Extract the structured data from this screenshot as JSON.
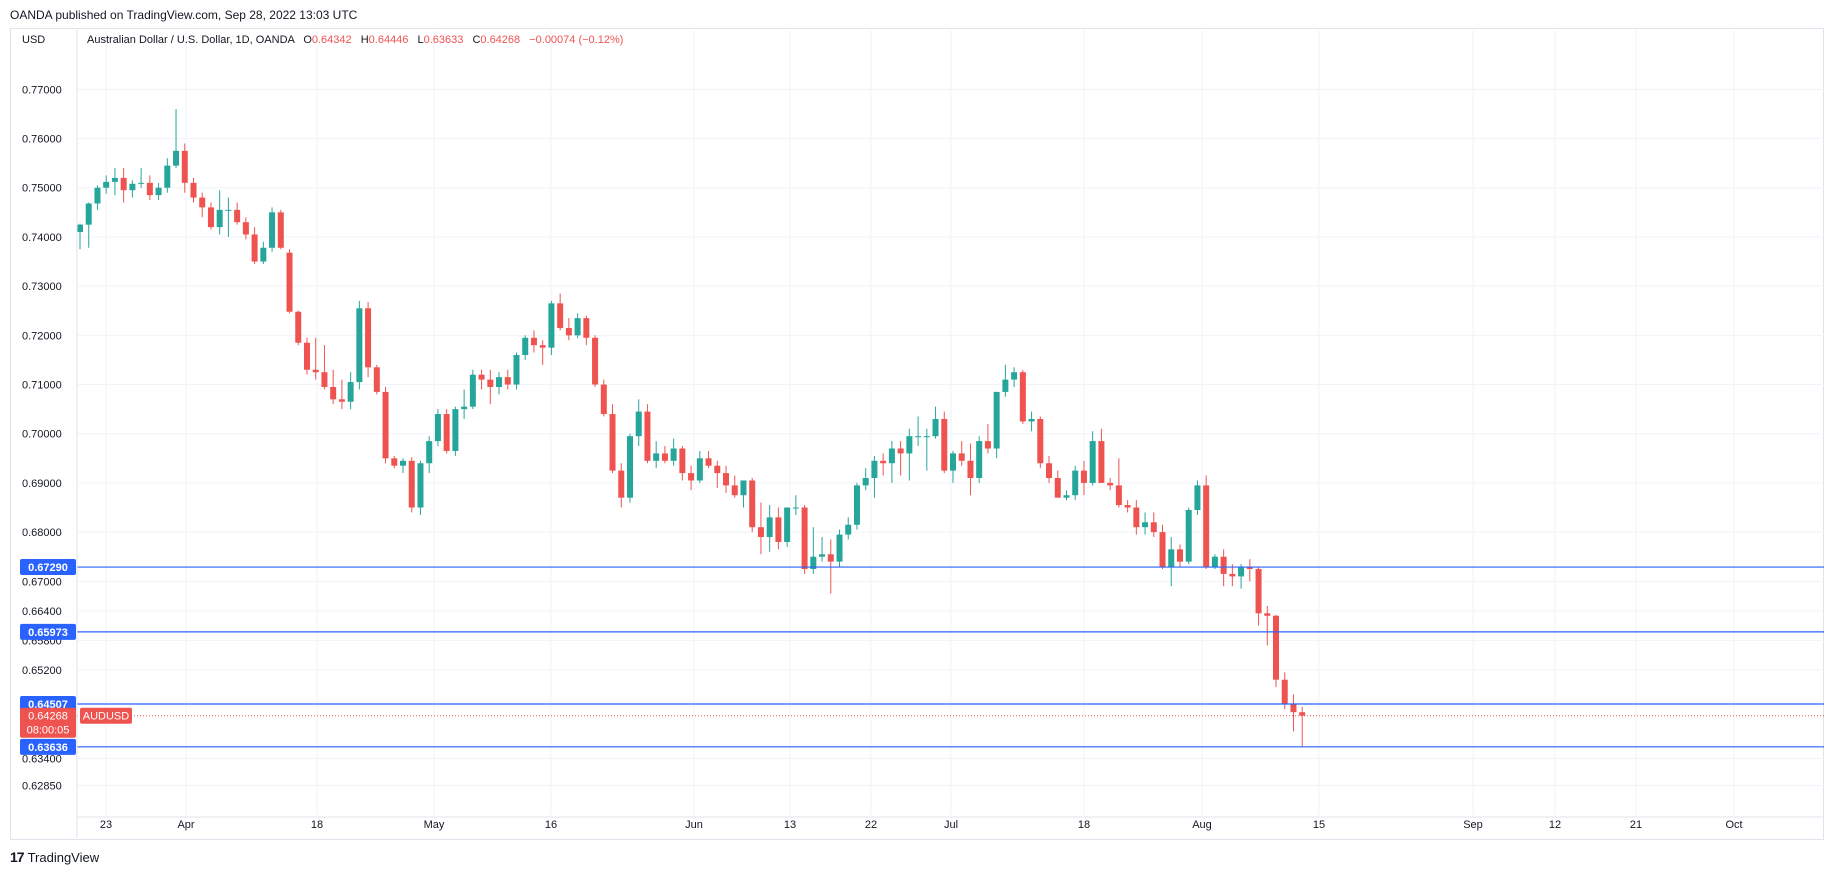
{
  "header": {
    "published": "OANDA published on TradingView.com, Sep 28, 2022 13:03 UTC"
  },
  "legend": {
    "symbol_desc": "Australian Dollar / U.S. Dollar, 1D, OANDA",
    "o_label": "O",
    "o_value": "0.64342",
    "h_label": "H",
    "h_value": "0.64446",
    "l_label": "L",
    "l_value": "0.63633",
    "c_label": "C",
    "c_value": "0.64268",
    "change": "−0.00074 (−0.12%)"
  },
  "currency": "USD",
  "footer": {
    "brand": "TradingView",
    "logo_glyph": "17"
  },
  "colors": {
    "up": "#26a69a",
    "down": "#ef5350",
    "hline": "#2962ff",
    "grid": "#f0f3fa",
    "text": "#131722"
  },
  "chart_data": {
    "type": "candlestick",
    "symbol": "AUDUSD",
    "ylim": [
      0.6225,
      0.778
    ],
    "y_ticks": [
      "0.77000",
      "0.76000",
      "0.75000",
      "0.74000",
      "0.73000",
      "0.72000",
      "0.71000",
      "0.70000",
      "0.69000",
      "0.68000",
      "0.67000",
      "0.66400",
      "0.65800",
      "0.65200",
      "0.63400",
      "0.62850"
    ],
    "x_ticks": [
      "23",
      "Apr",
      "18",
      "May",
      "16",
      "Jun",
      "13",
      "22",
      "Jul",
      "18",
      "Aug",
      "15",
      "Sep",
      "12",
      "21",
      "Oct"
    ],
    "horizontal_lines": [
      {
        "price": 0.6729,
        "label": "0.67290"
      },
      {
        "price": 0.65973,
        "label": "0.65973"
      },
      {
        "price": 0.64507,
        "label": "0.64507"
      },
      {
        "price": 0.63636,
        "label": "0.63636"
      }
    ],
    "last_price": {
      "value": 0.64268,
      "label": "0.64268",
      "symbol_tag": "AUDUSD",
      "countdown": "08:00:05"
    },
    "candles": [
      [
        0.741,
        0.7427,
        0.7375,
        0.7425
      ],
      [
        0.7425,
        0.747,
        0.7378,
        0.7468
      ],
      [
        0.7468,
        0.7505,
        0.7455,
        0.75
      ],
      [
        0.75,
        0.7525,
        0.7488,
        0.7512
      ],
      [
        0.7512,
        0.754,
        0.7485,
        0.752
      ],
      [
        0.752,
        0.754,
        0.747,
        0.7495
      ],
      [
        0.7495,
        0.7515,
        0.748,
        0.7508
      ],
      [
        0.7508,
        0.754,
        0.75,
        0.751
      ],
      [
        0.751,
        0.7525,
        0.7475,
        0.7485
      ],
      [
        0.7485,
        0.751,
        0.7475,
        0.75
      ],
      [
        0.75,
        0.756,
        0.749,
        0.7545
      ],
      [
        0.7545,
        0.766,
        0.754,
        0.7575
      ],
      [
        0.7575,
        0.759,
        0.749,
        0.751
      ],
      [
        0.751,
        0.752,
        0.747,
        0.748
      ],
      [
        0.748,
        0.749,
        0.744,
        0.746
      ],
      [
        0.746,
        0.747,
        0.7415,
        0.742
      ],
      [
        0.742,
        0.7495,
        0.7405,
        0.7455
      ],
      [
        0.7455,
        0.748,
        0.74,
        0.7455
      ],
      [
        0.7455,
        0.747,
        0.7425,
        0.743
      ],
      [
        0.743,
        0.744,
        0.7395,
        0.7405
      ],
      [
        0.7405,
        0.742,
        0.7345,
        0.735
      ],
      [
        0.735,
        0.739,
        0.7345,
        0.7378
      ],
      [
        0.7378,
        0.746,
        0.737,
        0.745
      ],
      [
        0.745,
        0.7455,
        0.7375,
        0.7378
      ],
      [
        0.7368,
        0.7375,
        0.7245,
        0.7248
      ],
      [
        0.7248,
        0.725,
        0.718,
        0.7185
      ],
      [
        0.7185,
        0.7195,
        0.712,
        0.713
      ],
      [
        0.713,
        0.7195,
        0.711,
        0.7125
      ],
      [
        0.7125,
        0.718,
        0.709,
        0.7095
      ],
      [
        0.7095,
        0.713,
        0.706,
        0.707
      ],
      [
        0.707,
        0.711,
        0.705,
        0.7065
      ],
      [
        0.7065,
        0.7125,
        0.705,
        0.7105
      ],
      [
        0.7105,
        0.727,
        0.709,
        0.7255
      ],
      [
        0.7255,
        0.7268,
        0.7115,
        0.7135
      ],
      [
        0.7135,
        0.714,
        0.708,
        0.7085
      ],
      [
        0.7085,
        0.7095,
        0.694,
        0.695
      ],
      [
        0.695,
        0.6955,
        0.693,
        0.6935
      ],
      [
        0.6935,
        0.695,
        0.692,
        0.6945
      ],
      [
        0.6945,
        0.6952,
        0.684,
        0.685
      ],
      [
        0.685,
        0.6945,
        0.6835,
        0.694
      ],
      [
        0.694,
        0.6995,
        0.692,
        0.6985
      ],
      [
        0.6985,
        0.705,
        0.6975,
        0.704
      ],
      [
        0.704,
        0.705,
        0.696,
        0.6965
      ],
      [
        0.6965,
        0.7055,
        0.6955,
        0.705
      ],
      [
        0.705,
        0.709,
        0.703,
        0.7055
      ],
      [
        0.7055,
        0.713,
        0.705,
        0.712
      ],
      [
        0.712,
        0.713,
        0.709,
        0.711
      ],
      [
        0.711,
        0.713,
        0.706,
        0.7095
      ],
      [
        0.7095,
        0.7125,
        0.708,
        0.7115
      ],
      [
        0.7115,
        0.713,
        0.709,
        0.71
      ],
      [
        0.71,
        0.7165,
        0.709,
        0.716
      ],
      [
        0.716,
        0.72,
        0.715,
        0.7195
      ],
      [
        0.7195,
        0.721,
        0.7165,
        0.718
      ],
      [
        0.718,
        0.719,
        0.714,
        0.7175
      ],
      [
        0.7175,
        0.727,
        0.716,
        0.7265
      ],
      [
        0.7265,
        0.7285,
        0.721,
        0.7215
      ],
      [
        0.7215,
        0.7235,
        0.719,
        0.72
      ],
      [
        0.72,
        0.7245,
        0.7195,
        0.7235
      ],
      [
        0.7235,
        0.724,
        0.718,
        0.7195
      ],
      [
        0.7195,
        0.72,
        0.7095,
        0.71
      ],
      [
        0.71,
        0.711,
        0.7035,
        0.704
      ],
      [
        0.704,
        0.706,
        0.692,
        0.6925
      ],
      [
        0.6925,
        0.694,
        0.685,
        0.687
      ],
      [
        0.687,
        0.7,
        0.686,
        0.6995
      ],
      [
        0.6995,
        0.707,
        0.6975,
        0.7045
      ],
      [
        0.7045,
        0.706,
        0.694,
        0.6945
      ],
      [
        0.6945,
        0.6985,
        0.693,
        0.696
      ],
      [
        0.696,
        0.6975,
        0.694,
        0.6945
      ],
      [
        0.6945,
        0.699,
        0.6935,
        0.697
      ],
      [
        0.697,
        0.6975,
        0.6905,
        0.692
      ],
      [
        0.692,
        0.6935,
        0.6885,
        0.6905
      ],
      [
        0.6905,
        0.6965,
        0.69,
        0.695
      ],
      [
        0.695,
        0.6965,
        0.693,
        0.6935
      ],
      [
        0.6935,
        0.6945,
        0.689,
        0.692
      ],
      [
        0.692,
        0.6935,
        0.688,
        0.6895
      ],
      [
        0.6895,
        0.6915,
        0.687,
        0.6875
      ],
      [
        0.6875,
        0.6905,
        0.685,
        0.6905
      ],
      [
        0.6905,
        0.691,
        0.68,
        0.681
      ],
      [
        0.681,
        0.686,
        0.6755,
        0.679
      ],
      [
        0.679,
        0.6855,
        0.676,
        0.683
      ],
      [
        0.683,
        0.685,
        0.6765,
        0.678
      ],
      [
        0.678,
        0.685,
        0.677,
        0.685
      ],
      [
        0.685,
        0.6875,
        0.6835,
        0.685
      ],
      [
        0.685,
        0.6855,
        0.6715,
        0.6725
      ],
      [
        0.6725,
        0.681,
        0.6715,
        0.675
      ],
      [
        0.675,
        0.679,
        0.674,
        0.6755
      ],
      [
        0.6755,
        0.6785,
        0.6675,
        0.674
      ],
      [
        0.674,
        0.6805,
        0.673,
        0.6795
      ],
      [
        0.6795,
        0.683,
        0.6785,
        0.6815
      ],
      [
        0.6815,
        0.69,
        0.6805,
        0.6895
      ],
      [
        0.6895,
        0.693,
        0.6885,
        0.691
      ],
      [
        0.691,
        0.6955,
        0.687,
        0.6945
      ],
      [
        0.6945,
        0.696,
        0.6915,
        0.694
      ],
      [
        0.694,
        0.6985,
        0.69,
        0.697
      ],
      [
        0.697,
        0.6985,
        0.6915,
        0.696
      ],
      [
        0.696,
        0.701,
        0.6905,
        0.6995
      ],
      [
        0.6995,
        0.7035,
        0.6975,
        0.6995
      ],
      [
        0.6995,
        0.701,
        0.6925,
        0.6995
      ],
      [
        0.6995,
        0.7055,
        0.699,
        0.703
      ],
      [
        0.703,
        0.7045,
        0.692,
        0.6925
      ],
      [
        0.6925,
        0.6965,
        0.69,
        0.696
      ],
      [
        0.696,
        0.6985,
        0.6935,
        0.6945
      ],
      [
        0.6945,
        0.698,
        0.6875,
        0.691
      ],
      [
        0.691,
        0.6995,
        0.69,
        0.6985
      ],
      [
        0.6985,
        0.702,
        0.696,
        0.697
      ],
      [
        0.697,
        0.7085,
        0.695,
        0.7085
      ],
      [
        0.7085,
        0.714,
        0.7075,
        0.711
      ],
      [
        0.711,
        0.7135,
        0.7095,
        0.7125
      ],
      [
        0.7125,
        0.713,
        0.702,
        0.7025
      ],
      [
        0.7025,
        0.7045,
        0.7005,
        0.703
      ],
      [
        0.703,
        0.7035,
        0.693,
        0.694
      ],
      [
        0.694,
        0.6955,
        0.69,
        0.691
      ],
      [
        0.691,
        0.6925,
        0.687,
        0.687
      ],
      [
        0.687,
        0.6885,
        0.6865,
        0.6875
      ],
      [
        0.6875,
        0.6935,
        0.6865,
        0.6925
      ],
      [
        0.6925,
        0.6945,
        0.6875,
        0.69
      ],
      [
        0.69,
        0.7005,
        0.6895,
        0.6985
      ],
      [
        0.6985,
        0.701,
        0.69,
        0.69
      ],
      [
        0.69,
        0.691,
        0.6885,
        0.6895
      ],
      [
        0.6895,
        0.695,
        0.685,
        0.6855
      ],
      [
        0.6855,
        0.6865,
        0.684,
        0.685
      ],
      [
        0.685,
        0.6865,
        0.6795,
        0.681
      ],
      [
        0.681,
        0.684,
        0.6795,
        0.682
      ],
      [
        0.682,
        0.684,
        0.679,
        0.68
      ],
      [
        0.68,
        0.6815,
        0.6725,
        0.673
      ],
      [
        0.673,
        0.679,
        0.669,
        0.6765
      ],
      [
        0.6765,
        0.6775,
        0.673,
        0.674
      ],
      [
        0.674,
        0.685,
        0.6735,
        0.6845
      ],
      [
        0.6845,
        0.6905,
        0.6835,
        0.6895
      ],
      [
        0.6895,
        0.6915,
        0.6725,
        0.673
      ],
      [
        0.673,
        0.6755,
        0.6725,
        0.675
      ],
      [
        0.675,
        0.6765,
        0.669,
        0.6715
      ],
      [
        0.6715,
        0.6735,
        0.669,
        0.671
      ],
      [
        0.671,
        0.6735,
        0.6685,
        0.673
      ],
      [
        0.673,
        0.6745,
        0.67,
        0.6725
      ],
      [
        0.6725,
        0.673,
        0.661,
        0.6635
      ],
      [
        0.6635,
        0.665,
        0.657,
        0.663
      ],
      [
        0.663,
        0.6632,
        0.6485,
        0.65
      ],
      [
        0.65,
        0.6515,
        0.644,
        0.645
      ],
      [
        0.645,
        0.647,
        0.6395,
        0.6434
      ],
      [
        0.6434,
        0.6445,
        0.6363,
        0.6427
      ]
    ]
  }
}
